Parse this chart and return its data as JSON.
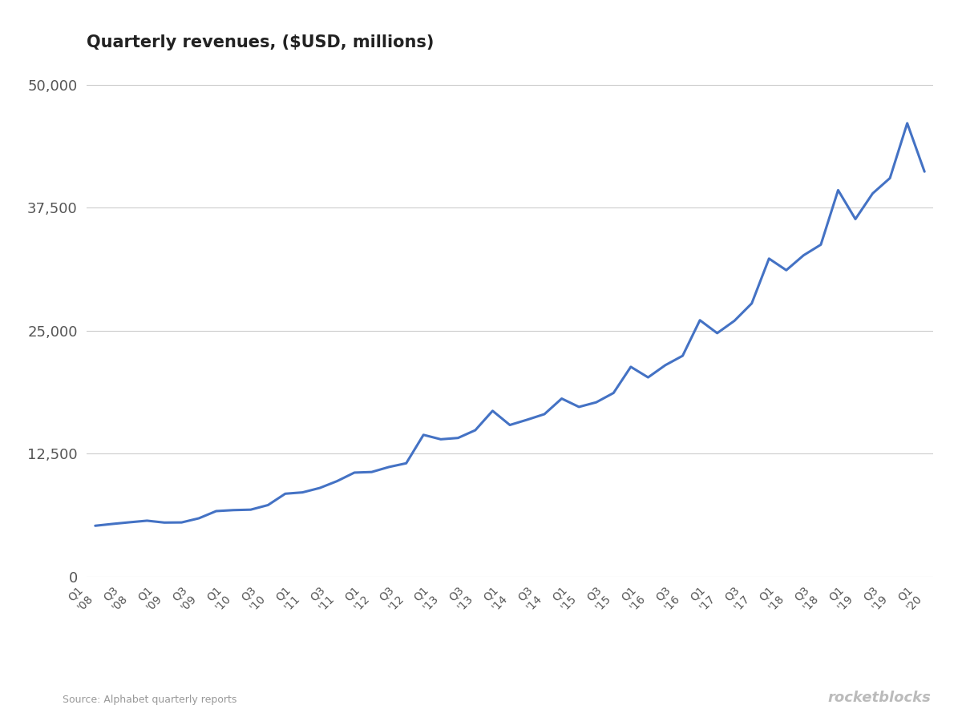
{
  "title": "Quarterly revenues, ($USD, millions)",
  "source_text": "Source: Alphabet quarterly reports",
  "watermark": "rocketblocks",
  "line_color": "#4472C4",
  "line_width": 2.2,
  "background_color": "#ffffff",
  "grid_color": "#cccccc",
  "title_color": "#222222",
  "axis_label_color": "#555555",
  "ylim": [
    0,
    52000
  ],
  "yticks": [
    0,
    12500,
    25000,
    37500,
    50000
  ],
  "revenues": [
    5186,
    5372,
    5541,
    5700,
    5509,
    5523,
    5944,
    6674,
    6775,
    6820,
    7286,
    8440,
    8575,
    9026,
    9720,
    10584,
    10645,
    11154,
    11533,
    14419,
    13969,
    14105,
    14893,
    16860,
    15421,
    15955,
    16523,
    18103,
    17258,
    17727,
    18675,
    21329,
    20257,
    21500,
    22451,
    26064,
    24750,
    26010,
    27772,
    32323,
    31146,
    32657,
    33740,
    39276,
    36339,
    38944,
    40499,
    46075,
    41159
  ],
  "xtick_labels": [
    "Q1\n'08",
    "Q3\n'08",
    "Q1\n'09",
    "Q3\n'09",
    "Q1\n'10",
    "Q3\n'10",
    "Q1\n'11",
    "Q3\n'11",
    "Q1\n'12",
    "Q3\n'12",
    "Q1\n'13",
    "Q3\n'13",
    "Q1\n'14",
    "Q3\n'14",
    "Q1\n'15",
    "Q3\n'15",
    "Q1\n'16",
    "Q3\n'16",
    "Q1\n'17",
    "Q3\n'17",
    "Q1\n'18",
    "Q3\n'18",
    "Q1\n'19",
    "Q3\n'19",
    "Q1\n'20"
  ],
  "xtick_positions": [
    0,
    2,
    4,
    6,
    8,
    10,
    12,
    14,
    16,
    18,
    20,
    22,
    24,
    26,
    28,
    30,
    32,
    34,
    36,
    38,
    40,
    42,
    44,
    46,
    48
  ]
}
